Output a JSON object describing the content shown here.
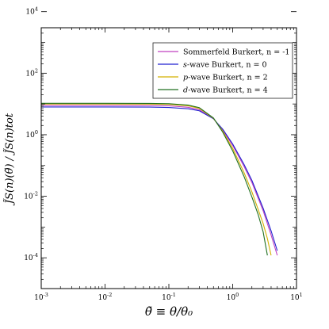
{
  "chart_data": {
    "type": "line",
    "title": "",
    "xlabel": "θ̃ ≡ θ/θ₀",
    "ylabel": "J̃S(n)(θ̃) / J̃S(n)tot",
    "xscale": "log",
    "yscale": "log",
    "xlim": [
      0.001,
      10
    ],
    "ylim": [
      1e-05,
      3000
    ],
    "grid": false,
    "legend_position": "top-right",
    "x_ticks": [
      {
        "value": 0.001,
        "base": "10",
        "exp": "-3"
      },
      {
        "value": 0.01,
        "base": "10",
        "exp": "-2"
      },
      {
        "value": 0.1,
        "base": "10",
        "exp": "-1"
      },
      {
        "value": 1,
        "base": "10",
        "exp": "0"
      },
      {
        "value": 10,
        "base": "10",
        "exp": "1"
      }
    ],
    "y_ticks": [
      {
        "value": 0.0001,
        "base": "10",
        "exp": "-4"
      },
      {
        "value": 0.01,
        "base": "10",
        "exp": "-2"
      },
      {
        "value": 1,
        "base": "10",
        "exp": "0"
      },
      {
        "value": 100,
        "base": "10",
        "exp": "2"
      },
      {
        "value": 10000,
        "base": "10",
        "exp": "4"
      }
    ],
    "series": [
      {
        "name": "Sommerfeld Burkert, n = -1",
        "name_italic": "",
        "name_rest": "Sommerfeld Burkert, n = -1",
        "color": "#c040c0",
        "x": [
          0.001,
          0.01,
          0.05,
          0.1,
          0.2,
          0.3,
          0.5,
          0.7,
          1,
          1.5,
          2,
          3,
          4,
          5
        ],
        "y": [
          9.0,
          9.0,
          8.9,
          8.7,
          7.8,
          6.5,
          3.3,
          1.4,
          0.45,
          0.095,
          0.028,
          0.0034,
          0.00055,
          0.00012
        ]
      },
      {
        "name": "s-wave Burkert, n = 0",
        "name_italic": "s",
        "name_rest": "-wave Burkert, n = 0",
        "color": "#2020d0",
        "x": [
          0.001,
          0.01,
          0.05,
          0.1,
          0.2,
          0.3,
          0.5,
          0.7,
          1,
          1.5,
          2,
          3,
          4,
          5
        ],
        "y": [
          8.0,
          8.0,
          7.9,
          7.7,
          7.0,
          6.0,
          3.3,
          1.5,
          0.5,
          0.11,
          0.033,
          0.0041,
          0.00075,
          0.00017
        ]
      },
      {
        "name": "p-wave Burkert, n = 2",
        "name_italic": "p",
        "name_rest": "-wave Burkert, n = 2",
        "color": "#d4b000",
        "x": [
          0.001,
          0.01,
          0.05,
          0.1,
          0.2,
          0.3,
          0.5,
          0.7,
          1,
          1.5,
          2,
          3,
          3.5,
          4
        ],
        "y": [
          10.0,
          10.0,
          9.9,
          9.7,
          8.7,
          7.2,
          3.4,
          1.3,
          0.36,
          0.06,
          0.014,
          0.0013,
          0.00042,
          0.00012
        ]
      },
      {
        "name": "d-wave Burkert, n = 4",
        "name_italic": "d",
        "name_rest": "-wave Burkert, n = 4",
        "color": "#207020",
        "x": [
          0.001,
          0.01,
          0.05,
          0.1,
          0.2,
          0.3,
          0.5,
          0.7,
          1,
          1.5,
          2,
          2.5,
          3,
          3.5
        ],
        "y": [
          10.5,
          10.5,
          10.4,
          10.2,
          9.2,
          7.6,
          3.5,
          1.2,
          0.3,
          0.045,
          0.0095,
          0.0026,
          0.0007,
          0.00012
        ]
      }
    ]
  }
}
